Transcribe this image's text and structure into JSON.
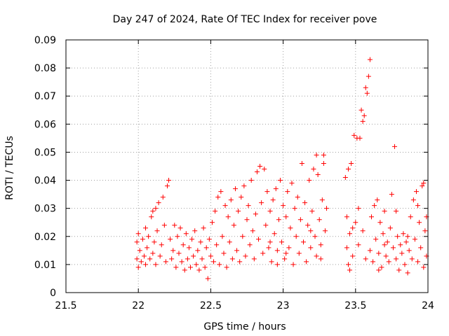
{
  "chart_data": {
    "type": "scatter",
    "title": "Day 247 of 2024, Rate Of TEC Index for receiver pove",
    "xlabel": "GPS time / hours",
    "ylabel": "ROTI / TECUs",
    "xlim": [
      21.5,
      24
    ],
    "ylim": [
      0,
      0.09
    ],
    "xticks": [
      21.5,
      22,
      22.5,
      23,
      23.5,
      24
    ],
    "xtick_labels": [
      "21.5",
      "22",
      "22.5",
      "23",
      "23.5",
      "24"
    ],
    "yticks": [
      0,
      0.01,
      0.02,
      0.03,
      0.04,
      0.05,
      0.06,
      0.07,
      0.08,
      0.09
    ],
    "ytick_labels": [
      "0",
      "0.01",
      "0.02",
      "0.03",
      "0.04",
      "0.05",
      "0.06",
      "0.07",
      "0.08",
      "0.09"
    ],
    "grid": true,
    "marker": "+",
    "color": "#ff0000",
    "series": [
      {
        "name": "ROTI",
        "points": [
          [
            21.99,
            0.018
          ],
          [
            21.99,
            0.012
          ],
          [
            22.0,
            0.009
          ],
          [
            22.0,
            0.021
          ],
          [
            22.01,
            0.015
          ],
          [
            22.02,
            0.011
          ],
          [
            22.03,
            0.019
          ],
          [
            22.04,
            0.013
          ],
          [
            22.05,
            0.023
          ],
          [
            22.05,
            0.01
          ],
          [
            22.06,
            0.016
          ],
          [
            22.07,
            0.02
          ],
          [
            22.08,
            0.012
          ],
          [
            22.09,
            0.027
          ],
          [
            22.1,
            0.029
          ],
          [
            22.1,
            0.014
          ],
          [
            22.11,
            0.018
          ],
          [
            22.12,
            0.03
          ],
          [
            22.12,
            0.01
          ],
          [
            22.13,
            0.022
          ],
          [
            22.14,
            0.032
          ],
          [
            22.15,
            0.013
          ],
          [
            22.16,
            0.017
          ],
          [
            22.17,
            0.034
          ],
          [
            22.18,
            0.024
          ],
          [
            22.19,
            0.011
          ],
          [
            22.2,
            0.038
          ],
          [
            22.21,
            0.04
          ],
          [
            22.22,
            0.019
          ],
          [
            22.23,
            0.012
          ],
          [
            22.24,
            0.015
          ],
          [
            22.25,
            0.024
          ],
          [
            22.26,
            0.009
          ],
          [
            22.27,
            0.02
          ],
          [
            22.28,
            0.014
          ],
          [
            22.29,
            0.023
          ],
          [
            22.3,
            0.011
          ],
          [
            22.31,
            0.017
          ],
          [
            22.32,
            0.008
          ],
          [
            22.33,
            0.021
          ],
          [
            22.34,
            0.012
          ],
          [
            22.35,
            0.016
          ],
          [
            22.36,
            0.009
          ],
          [
            22.37,
            0.019
          ],
          [
            22.38,
            0.013
          ],
          [
            22.39,
            0.022
          ],
          [
            22.4,
            0.01
          ],
          [
            22.41,
            0.015
          ],
          [
            22.42,
            0.008
          ],
          [
            22.43,
            0.018
          ],
          [
            22.44,
            0.012
          ],
          [
            22.45,
            0.023
          ],
          [
            22.46,
            0.009
          ],
          [
            22.47,
            0.016
          ],
          [
            22.48,
            0.005
          ],
          [
            22.49,
            0.019
          ],
          [
            22.5,
            0.013
          ],
          [
            22.51,
            0.025
          ],
          [
            22.52,
            0.011
          ],
          [
            22.53,
            0.029
          ],
          [
            22.54,
            0.017
          ],
          [
            22.55,
            0.034
          ],
          [
            22.56,
            0.01
          ],
          [
            22.57,
            0.036
          ],
          [
            22.58,
            0.02
          ],
          [
            22.59,
            0.014
          ],
          [
            22.6,
            0.031
          ],
          [
            22.61,
            0.009
          ],
          [
            22.62,
            0.027
          ],
          [
            22.63,
            0.018
          ],
          [
            22.64,
            0.033
          ],
          [
            22.65,
            0.012
          ],
          [
            22.66,
            0.024
          ],
          [
            22.67,
            0.037
          ],
          [
            22.68,
            0.015
          ],
          [
            22.69,
            0.029
          ],
          [
            22.7,
            0.011
          ],
          [
            22.71,
            0.034
          ],
          [
            22.72,
            0.02
          ],
          [
            22.73,
            0.038
          ],
          [
            22.74,
            0.013
          ],
          [
            22.75,
            0.026
          ],
          [
            22.76,
            0.031
          ],
          [
            22.77,
            0.017
          ],
          [
            22.78,
            0.04
          ],
          [
            22.79,
            0.022
          ],
          [
            22.8,
            0.012
          ],
          [
            22.81,
            0.028
          ],
          [
            22.82,
            0.043
          ],
          [
            22.83,
            0.019
          ],
          [
            22.84,
            0.045
          ],
          [
            22.85,
            0.032
          ],
          [
            22.86,
            0.014
          ],
          [
            22.87,
            0.044
          ],
          [
            22.88,
            0.024
          ],
          [
            22.89,
            0.036
          ],
          [
            22.9,
            0.016
          ],
          [
            22.91,
            0.029
          ],
          [
            22.92,
            0.011
          ],
          [
            22.93,
            0.033
          ],
          [
            22.94,
            0.021
          ],
          [
            22.95,
            0.037
          ],
          [
            22.96,
            0.015
          ],
          [
            22.97,
            0.026
          ],
          [
            22.98,
            0.04
          ],
          [
            22.99,
            0.018
          ],
          [
            23.0,
            0.031
          ],
          [
            23.01,
            0.012
          ],
          [
            23.02,
            0.027
          ],
          [
            23.03,
            0.036
          ],
          [
            23.04,
            0.016
          ],
          [
            23.05,
            0.023
          ],
          [
            23.06,
            0.039
          ],
          [
            23.07,
            0.01
          ],
          [
            23.08,
            0.03
          ],
          [
            23.09,
            0.02
          ],
          [
            23.1,
            0.034
          ],
          [
            23.11,
            0.014
          ],
          [
            23.12,
            0.026
          ],
          [
            23.13,
            0.046
          ],
          [
            23.14,
            0.018
          ],
          [
            23.15,
            0.032
          ],
          [
            23.16,
            0.011
          ],
          [
            23.17,
            0.024
          ],
          [
            23.18,
            0.04
          ],
          [
            23.19,
            0.016
          ],
          [
            23.2,
            0.029
          ],
          [
            23.21,
            0.044
          ],
          [
            23.22,
            0.02
          ],
          [
            23.23,
            0.013
          ],
          [
            23.24,
            0.042
          ],
          [
            23.25,
            0.026
          ],
          [
            23.26,
            0.017
          ],
          [
            23.27,
            0.033
          ],
          [
            23.28,
            0.046
          ],
          [
            23.29,
            0.022
          ],
          [
            23.3,
            0.03
          ],
          [
            23.28,
            0.049
          ],
          [
            23.23,
            0.049
          ],
          [
            23.26,
            0.012
          ],
          [
            23.19,
            0.022
          ],
          [
            23.02,
            0.014
          ],
          [
            22.96,
            0.01
          ],
          [
            22.91,
            0.018
          ],
          [
            23.43,
            0.041
          ],
          [
            23.44,
            0.016
          ],
          [
            23.45,
            0.044
          ],
          [
            23.45,
            0.01
          ],
          [
            23.46,
            0.021
          ],
          [
            23.47,
            0.046
          ],
          [
            23.48,
            0.013
          ],
          [
            23.49,
            0.056
          ],
          [
            23.5,
            0.025
          ],
          [
            23.51,
            0.055
          ],
          [
            23.52,
            0.017
          ],
          [
            23.53,
            0.055
          ],
          [
            23.54,
            0.065
          ],
          [
            23.55,
            0.061
          ],
          [
            23.55,
            0.022
          ],
          [
            23.56,
            0.063
          ],
          [
            23.57,
            0.073
          ],
          [
            23.58,
            0.071
          ],
          [
            23.59,
            0.077
          ],
          [
            23.6,
            0.083
          ],
          [
            23.6,
            0.015
          ],
          [
            23.61,
            0.027
          ],
          [
            23.62,
            0.011
          ],
          [
            23.63,
            0.031
          ],
          [
            23.64,
            0.019
          ],
          [
            23.65,
            0.033
          ],
          [
            23.66,
            0.014
          ],
          [
            23.67,
            0.025
          ],
          [
            23.68,
            0.009
          ],
          [
            23.69,
            0.021
          ],
          [
            23.7,
            0.029
          ],
          [
            23.71,
            0.013
          ],
          [
            23.72,
            0.018
          ],
          [
            23.73,
            0.011
          ],
          [
            23.74,
            0.023
          ],
          [
            23.75,
            0.035
          ],
          [
            23.76,
            0.016
          ],
          [
            23.77,
            0.052
          ],
          [
            23.78,
            0.012
          ],
          [
            23.79,
            0.02
          ],
          [
            23.8,
            0.008
          ],
          [
            23.81,
            0.017
          ],
          [
            23.82,
            0.014
          ],
          [
            23.83,
            0.021
          ],
          [
            23.84,
            0.01
          ],
          [
            23.85,
            0.018
          ],
          [
            23.86,
            0.007
          ],
          [
            23.87,
            0.015
          ],
          [
            23.88,
            0.027
          ],
          [
            23.89,
            0.012
          ],
          [
            23.9,
            0.033
          ],
          [
            23.91,
            0.019
          ],
          [
            23.92,
            0.036
          ],
          [
            23.93,
            0.011
          ],
          [
            23.94,
            0.025
          ],
          [
            23.95,
            0.016
          ],
          [
            23.96,
            0.038
          ],
          [
            23.97,
            0.009
          ],
          [
            23.98,
            0.022
          ],
          [
            23.99,
            0.013
          ],
          [
            23.99,
            0.027
          ],
          [
            23.97,
            0.039
          ],
          [
            23.93,
            0.031
          ],
          [
            23.86,
            0.02
          ],
          [
            23.78,
            0.029
          ],
          [
            23.7,
            0.017
          ],
          [
            23.66,
            0.008
          ],
          [
            23.57,
            0.012
          ],
          [
            23.52,
            0.03
          ],
          [
            23.48,
            0.023
          ],
          [
            23.46,
            0.008
          ],
          [
            23.44,
            0.027
          ]
        ]
      }
    ]
  }
}
